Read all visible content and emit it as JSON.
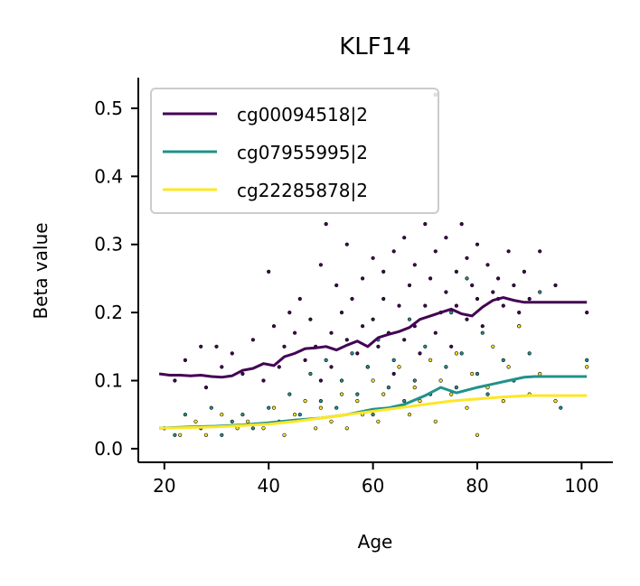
{
  "chart_data": {
    "type": "scatter",
    "title": "KLF14",
    "xlabel": "Age",
    "ylabel": "Beta value",
    "xlim": [
      15,
      106
    ],
    "ylim": [
      -0.02,
      0.545
    ],
    "xticks": [
      20,
      40,
      60,
      80,
      100
    ],
    "yticks": [
      0.0,
      0.1,
      0.2,
      0.3,
      0.4,
      0.5
    ],
    "xtick_labels": [
      "20",
      "40",
      "60",
      "80",
      "100"
    ],
    "ytick_labels": [
      "0.0",
      "0.1",
      "0.2",
      "0.3",
      "0.4",
      "0.5"
    ],
    "grid": false,
    "legend_position": "top-left",
    "series": [
      {
        "name": "cg00094518|2",
        "color": "#440154",
        "trend": {
          "x": [
            19,
            21,
            23,
            25,
            27,
            29,
            31,
            33,
            35,
            37,
            39,
            41,
            43,
            45,
            47,
            49,
            51,
            53,
            55,
            57,
            59,
            61,
            63,
            65,
            67,
            69,
            71,
            73,
            75,
            77,
            79,
            81,
            83,
            85,
            87,
            89,
            91,
            101
          ],
          "y": [
            0.11,
            0.108,
            0.108,
            0.107,
            0.108,
            0.106,
            0.105,
            0.107,
            0.115,
            0.118,
            0.125,
            0.122,
            0.135,
            0.14,
            0.147,
            0.148,
            0.15,
            0.145,
            0.152,
            0.158,
            0.15,
            0.163,
            0.168,
            0.172,
            0.178,
            0.19,
            0.195,
            0.2,
            0.205,
            0.198,
            0.195,
            0.208,
            0.218,
            0.222,
            0.218,
            0.215,
            0.215,
            0.215
          ]
        },
        "points": {
          "x": [
            22,
            24,
            27,
            28,
            30,
            31,
            33,
            35,
            37,
            39,
            40,
            41,
            42,
            43,
            44,
            45,
            46,
            47,
            48,
            49,
            50,
            50,
            51,
            52,
            52,
            53,
            54,
            55,
            55,
            56,
            57,
            58,
            58,
            59,
            60,
            60,
            61,
            62,
            62,
            63,
            64,
            64,
            65,
            66,
            66,
            67,
            68,
            68,
            69,
            70,
            70,
            71,
            72,
            72,
            73,
            74,
            74,
            75,
            76,
            76,
            77,
            78,
            78,
            79,
            80,
            80,
            81,
            82,
            83,
            84,
            85,
            86,
            87,
            88,
            89,
            90,
            92,
            95,
            101
          ],
          "y": [
            0.1,
            0.13,
            0.15,
            0.09,
            0.15,
            0.12,
            0.14,
            0.11,
            0.16,
            0.1,
            0.26,
            0.18,
            0.12,
            0.15,
            0.2,
            0.17,
            0.22,
            0.13,
            0.19,
            0.15,
            0.27,
            0.1,
            0.33,
            0.17,
            0.12,
            0.24,
            0.2,
            0.16,
            0.3,
            0.22,
            0.14,
            0.25,
            0.18,
            0.12,
            0.28,
            0.19,
            0.15,
            0.22,
            0.26,
            0.17,
            0.29,
            0.11,
            0.21,
            0.31,
            0.16,
            0.24,
            0.18,
            0.27,
            0.14,
            0.33,
            0.21,
            0.25,
            0.17,
            0.29,
            0.2,
            0.23,
            0.31,
            0.15,
            0.26,
            0.21,
            0.33,
            0.19,
            0.28,
            0.24,
            0.22,
            0.3,
            0.18,
            0.27,
            0.23,
            0.25,
            0.21,
            0.29,
            0.24,
            0.2,
            0.26,
            0.22,
            0.29,
            0.24,
            0.2
          ]
        }
      },
      {
        "name": "cg07955995|2",
        "color": "#21918c",
        "trend": {
          "x": [
            19,
            25,
            30,
            35,
            40,
            45,
            50,
            55,
            60,
            63,
            66,
            70,
            73,
            76,
            80,
            83,
            86,
            89,
            91,
            101
          ],
          "y": [
            0.03,
            0.032,
            0.033,
            0.035,
            0.038,
            0.042,
            0.045,
            0.05,
            0.058,
            0.06,
            0.065,
            0.078,
            0.09,
            0.082,
            0.09,
            0.095,
            0.1,
            0.105,
            0.106,
            0.106
          ]
        },
        "points": {
          "x": [
            20,
            22,
            24,
            27,
            29,
            31,
            33,
            35,
            37,
            40,
            42,
            44,
            46,
            48,
            50,
            51,
            53,
            54,
            56,
            57,
            59,
            60,
            61,
            63,
            64,
            66,
            67,
            68,
            70,
            71,
            72,
            74,
            75,
            76,
            77,
            78,
            80,
            81,
            82,
            84,
            85,
            87,
            88,
            90,
            92,
            96,
            101
          ],
          "y": [
            0.03,
            0.02,
            0.05,
            0.03,
            0.06,
            0.02,
            0.04,
            0.05,
            0.03,
            0.06,
            0.04,
            0.08,
            0.05,
            0.11,
            0.07,
            0.13,
            0.06,
            0.1,
            0.14,
            0.08,
            0.12,
            0.05,
            0.16,
            0.09,
            0.13,
            0.07,
            0.19,
            0.1,
            0.15,
            0.08,
            0.52,
            0.12,
            0.2,
            0.09,
            0.14,
            0.25,
            0.11,
            0.17,
            0.08,
            0.22,
            0.13,
            0.1,
            0.18,
            0.14,
            0.23,
            0.06,
            0.13
          ]
        }
      },
      {
        "name": "cg22285878|2",
        "color": "#fde725",
        "trend": {
          "x": [
            19,
            25,
            30,
            35,
            40,
            45,
            50,
            55,
            60,
            65,
            70,
            75,
            80,
            85,
            90,
            101
          ],
          "y": [
            0.03,
            0.031,
            0.032,
            0.034,
            0.036,
            0.04,
            0.045,
            0.05,
            0.055,
            0.06,
            0.065,
            0.07,
            0.073,
            0.076,
            0.078,
            0.078
          ]
        },
        "points": {
          "x": [
            20,
            23,
            26,
            28,
            31,
            34,
            36,
            39,
            41,
            43,
            45,
            47,
            49,
            50,
            52,
            54,
            55,
            57,
            58,
            60,
            61,
            62,
            64,
            65,
            67,
            68,
            69,
            71,
            72,
            73,
            75,
            76,
            78,
            79,
            80,
            82,
            83,
            85,
            86,
            88,
            90,
            92,
            95,
            101
          ],
          "y": [
            0.03,
            0.02,
            0.04,
            0.02,
            0.05,
            0.03,
            0.04,
            0.03,
            0.06,
            0.02,
            0.05,
            0.07,
            0.03,
            0.06,
            0.04,
            0.08,
            0.03,
            0.07,
            0.05,
            0.1,
            0.04,
            0.08,
            0.06,
            0.12,
            0.05,
            0.09,
            0.07,
            0.13,
            0.04,
            0.1,
            0.08,
            0.14,
            0.06,
            0.11,
            0.02,
            0.09,
            0.15,
            0.07,
            0.12,
            0.18,
            0.08,
            0.11,
            0.07,
            0.12
          ]
        }
      }
    ]
  }
}
